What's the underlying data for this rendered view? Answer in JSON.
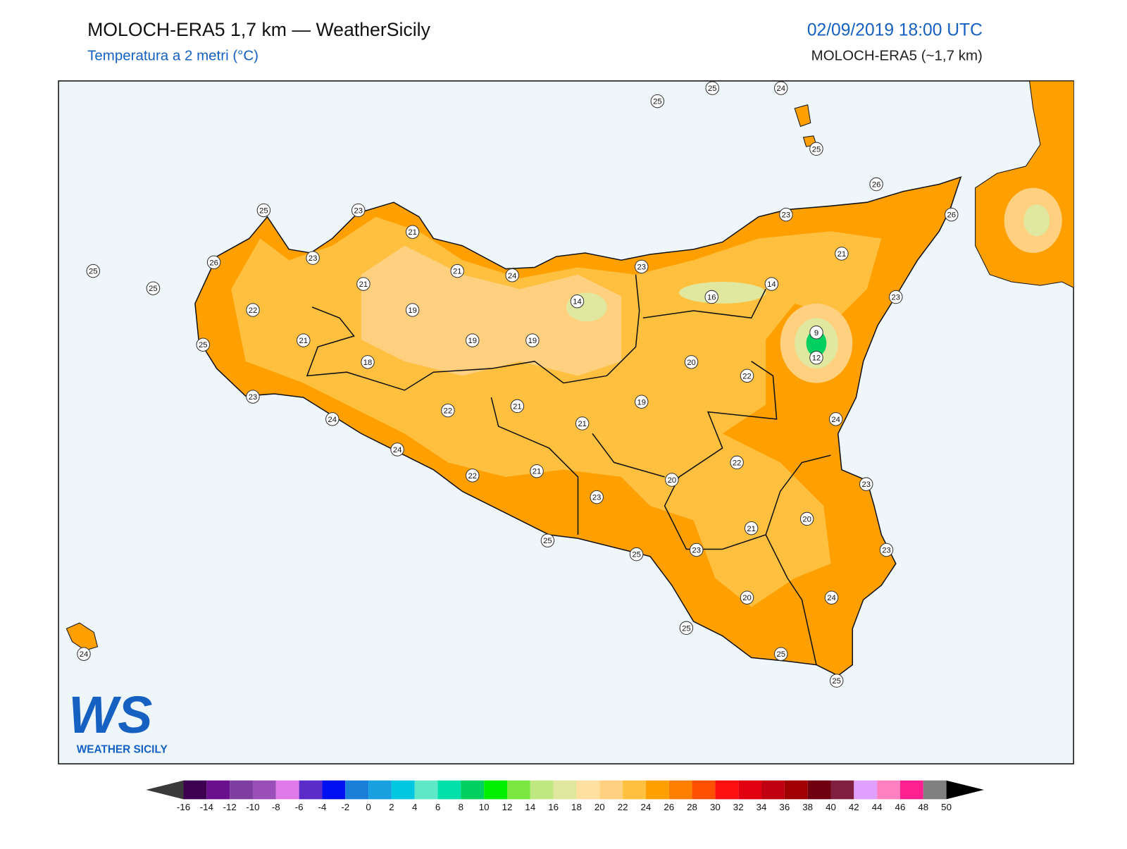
{
  "header": {
    "title": "MOLOCH-ERA5 1,7 km — WeatherSicily",
    "subtitle": "Temperatura a 2 metri (°C)",
    "date": "02/09/2019 18:00 UTC",
    "model": "MOLOCH-ERA5 (~1,7 km)"
  },
  "logo": {
    "mark": "WS",
    "name": "WEATHER SICILY"
  },
  "stations": [
    25,
    25,
    24,
    25,
    26,
    26,
    23,
    21,
    23,
    14,
    16,
    9,
    12,
    24,
    23,
    20,
    23,
    24,
    25,
    25,
    20,
    21,
    22,
    20,
    23,
    25,
    25,
    23,
    25,
    21,
    22,
    24,
    24,
    23,
    25,
    22,
    21,
    26,
    25,
    23,
    23,
    21,
    21,
    21,
    19,
    19,
    18,
    19,
    14,
    24,
    23,
    22,
    21,
    21,
    19,
    20,
    22,
    25,
    25,
    24
  ],
  "colorbar": {
    "ticks": [
      -16,
      -14,
      -12,
      -10,
      -8,
      -6,
      -4,
      -2,
      0,
      2,
      4,
      6,
      8,
      10,
      12,
      14,
      16,
      18,
      20,
      22,
      24,
      26,
      28,
      30,
      32,
      34,
      36,
      38,
      40,
      42,
      44,
      46,
      48,
      50
    ],
    "colors": [
      "#3d0050",
      "#6a0f8e",
      "#7f3fa0",
      "#9b4fb8",
      "#e07ae8",
      "#5b2cc8",
      "#0010f0",
      "#1a7fd8",
      "#18a0e0",
      "#00c8e0",
      "#5ee8c8",
      "#00e0a8",
      "#00d060",
      "#00f000",
      "#7ae840",
      "#c0e880",
      "#e0e8a0",
      "#ffe0a0",
      "#ffd080",
      "#ffc040",
      "#ffa000",
      "#ff8000",
      "#ff5000",
      "#ff1010",
      "#e00010",
      "#c00010",
      "#a00000",
      "#700010",
      "#802040",
      "#e0a0ff",
      "#ff80c0",
      "#ff2090",
      "#808080"
    ],
    "under": "#3a3a3a",
    "over": "#000000"
  }
}
